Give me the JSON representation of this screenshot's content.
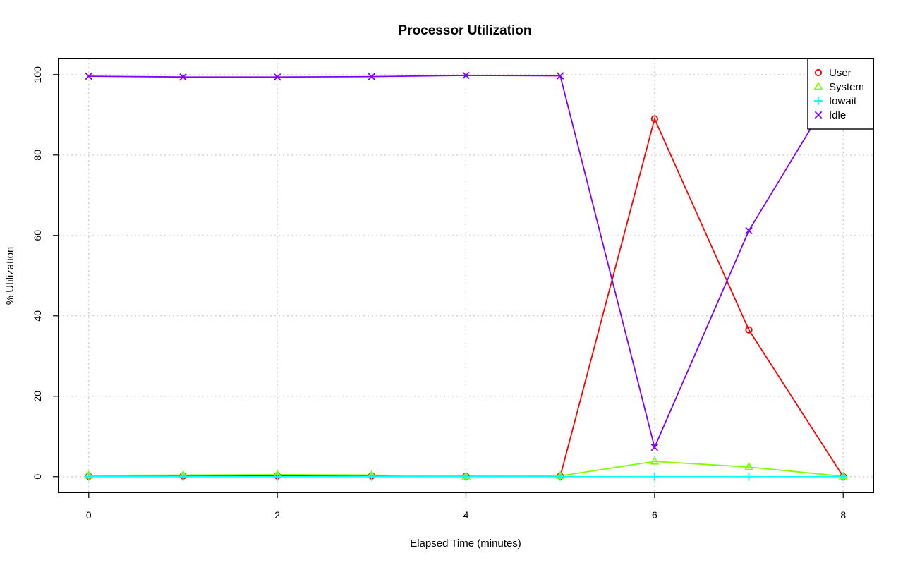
{
  "chart_data": {
    "type": "line",
    "title": "Processor Utilization",
    "xlabel": "Elapsed Time (minutes)",
    "ylabel": "% Utilization",
    "x": [
      0,
      1,
      2,
      3,
      4,
      5,
      6,
      7,
      8
    ],
    "xlim": [
      -0.32,
      8.32
    ],
    "ylim": [
      -3.9,
      104
    ],
    "xticks": [
      0,
      2,
      4,
      6,
      8
    ],
    "yticks": [
      0,
      20,
      40,
      60,
      80,
      100
    ],
    "grid": true,
    "legend_position": "top-right",
    "series": [
      {
        "name": "User",
        "color": "#ff0000",
        "marker": "circle",
        "values": [
          0.1,
          0.2,
          0.2,
          0.2,
          0.1,
          0.1,
          89.0,
          36.5,
          0.0
        ]
      },
      {
        "name": "System",
        "color": "#80ff00",
        "marker": "triangle",
        "values": [
          0.3,
          0.4,
          0.5,
          0.4,
          0.1,
          0.2,
          3.8,
          2.4,
          0.1
        ]
      },
      {
        "name": "Iowait",
        "color": "#00ffff",
        "marker": "plus",
        "values": [
          0.0,
          0.0,
          0.0,
          0.0,
          0.0,
          0.0,
          0.0,
          0.0,
          0.0
        ]
      },
      {
        "name": "Idle",
        "color": "#8000ff",
        "marker": "cross",
        "values": [
          99.6,
          99.4,
          99.4,
          99.5,
          99.8,
          99.7,
          7.3,
          61.2,
          99.9
        ]
      }
    ]
  }
}
